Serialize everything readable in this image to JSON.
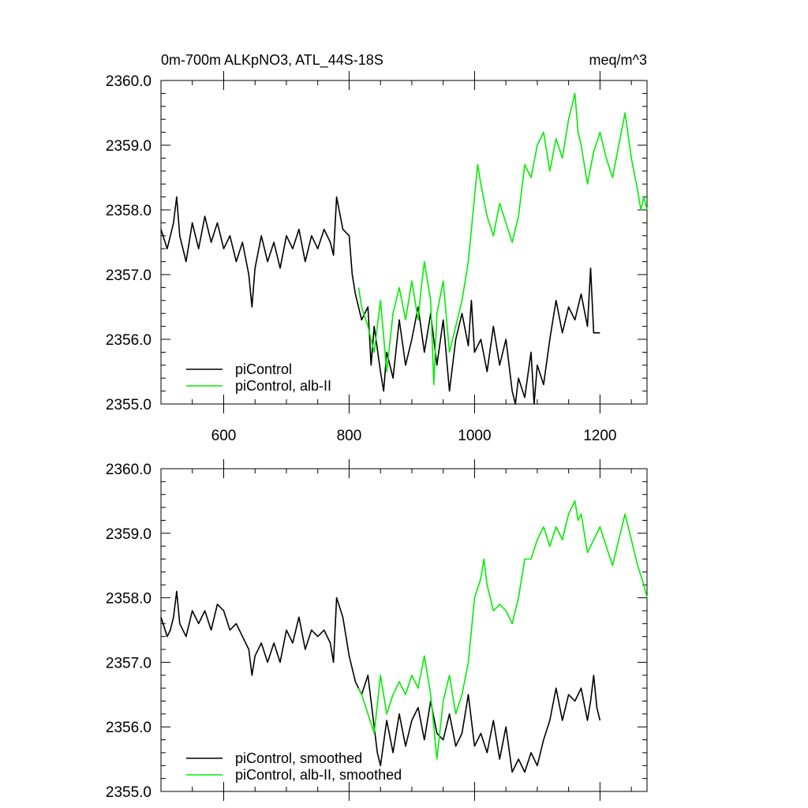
{
  "figure": {
    "title": "0m-700m ALKpNO3, ATL_44S-18S",
    "units": "meq/m^3"
  },
  "chart_data": [
    {
      "type": "line",
      "title": "0m-700m ALKpNO3, ATL_44S-18S",
      "units_label": "meq/m^3",
      "xlim": [
        500,
        1275
      ],
      "ylim": [
        2355.0,
        2360.0
      ],
      "xticks": [
        600,
        800,
        1000,
        1200
      ],
      "xtick_labels": [
        "600",
        "800",
        "1000",
        "1200"
      ],
      "yticks": [
        2355.0,
        2356.0,
        2357.0,
        2358.0,
        2359.0,
        2360.0
      ],
      "ytick_labels": [
        "2355.0",
        "2356.0",
        "2357.0",
        "2358.0",
        "2359.0",
        "2360.0"
      ],
      "grid": false,
      "legend_position": "bottom-left",
      "series": [
        {
          "name": "piControl",
          "color": "#000000",
          "x": [
            500,
            510,
            520,
            525,
            530,
            540,
            550,
            560,
            570,
            580,
            590,
            600,
            610,
            620,
            630,
            640,
            645,
            650,
            660,
            670,
            680,
            690,
            700,
            710,
            720,
            730,
            740,
            750,
            760,
            770,
            775,
            780,
            790,
            800,
            805,
            810,
            820,
            830,
            835,
            840,
            850,
            855,
            860,
            870,
            880,
            890,
            900,
            910,
            920,
            930,
            940,
            950,
            960,
            970,
            980,
            990,
            995,
            1000,
            1010,
            1020,
            1030,
            1040,
            1050,
            1060,
            1065,
            1070,
            1080,
            1090,
            1095,
            1100,
            1110,
            1120,
            1130,
            1140,
            1150,
            1160,
            1170,
            1180,
            1185,
            1190,
            1200
          ],
          "values": [
            2357.7,
            2357.4,
            2357.8,
            2358.2,
            2357.6,
            2357.2,
            2357.8,
            2357.4,
            2357.9,
            2357.5,
            2357.8,
            2357.4,
            2357.6,
            2357.2,
            2357.5,
            2357.0,
            2356.5,
            2357.1,
            2357.6,
            2357.2,
            2357.5,
            2357.1,
            2357.6,
            2357.4,
            2357.7,
            2357.2,
            2357.6,
            2357.4,
            2357.7,
            2357.5,
            2357.3,
            2358.2,
            2357.7,
            2357.6,
            2357.0,
            2356.7,
            2356.3,
            2356.5,
            2355.6,
            2356.2,
            2355.5,
            2355.2,
            2355.8,
            2355.4,
            2356.3,
            2355.6,
            2356.0,
            2356.5,
            2355.8,
            2356.4,
            2355.6,
            2356.3,
            2355.2,
            2356.0,
            2356.4,
            2355.9,
            2356.6,
            2355.8,
            2356.0,
            2355.5,
            2356.2,
            2355.6,
            2356.0,
            2355.2,
            2355.0,
            2355.4,
            2355.1,
            2355.8,
            2355.0,
            2355.6,
            2355.3,
            2356.0,
            2356.6,
            2356.1,
            2356.5,
            2356.3,
            2356.7,
            2356.2,
            2357.1,
            2356.1,
            2356.1
          ]
        },
        {
          "name": "piControl, alb-II",
          "color": "#00ee00",
          "x": [
            815,
            820,
            830,
            840,
            850,
            860,
            870,
            880,
            890,
            900,
            910,
            915,
            920,
            930,
            935,
            940,
            950,
            960,
            970,
            980,
            990,
            1000,
            1005,
            1010,
            1020,
            1030,
            1040,
            1050,
            1060,
            1070,
            1080,
            1090,
            1100,
            1110,
            1120,
            1130,
            1140,
            1150,
            1160,
            1165,
            1170,
            1180,
            1190,
            1200,
            1210,
            1220,
            1230,
            1240,
            1250,
            1260,
            1265,
            1270,
            1275
          ],
          "values": [
            2356.8,
            2356.5,
            2356.2,
            2355.8,
            2356.6,
            2355.5,
            2356.4,
            2356.8,
            2356.3,
            2356.9,
            2356.3,
            2356.8,
            2357.2,
            2356.6,
            2355.3,
            2356.4,
            2356.9,
            2355.8,
            2356.2,
            2356.6,
            2357.2,
            2358.2,
            2358.7,
            2358.4,
            2357.9,
            2357.6,
            2358.1,
            2357.8,
            2357.5,
            2357.9,
            2358.7,
            2358.5,
            2359.0,
            2359.2,
            2358.6,
            2359.1,
            2358.8,
            2359.4,
            2359.8,
            2359.2,
            2359.0,
            2358.4,
            2358.9,
            2359.2,
            2358.8,
            2358.5,
            2359.0,
            2359.5,
            2358.8,
            2358.3,
            2358.0,
            2358.2,
            2358.0
          ]
        }
      ]
    },
    {
      "type": "line",
      "xlim": [
        500,
        1275
      ],
      "ylim": [
        2355.0,
        2360.0
      ],
      "xticks": [
        600,
        800,
        1000,
        1200
      ],
      "yticks": [
        2355.0,
        2356.0,
        2357.0,
        2358.0,
        2359.0,
        2360.0
      ],
      "ytick_labels": [
        "2355.0",
        "2356.0",
        "2357.0",
        "2358.0",
        "2359.0",
        "2360.0"
      ],
      "grid": false,
      "legend_position": "bottom-left",
      "series": [
        {
          "name": "piControl, smoothed",
          "color": "#000000",
          "x": [
            500,
            510,
            515,
            520,
            525,
            530,
            540,
            550,
            560,
            570,
            580,
            590,
            600,
            610,
            620,
            630,
            640,
            645,
            650,
            660,
            670,
            680,
            690,
            700,
            710,
            720,
            730,
            740,
            750,
            760,
            770,
            775,
            780,
            790,
            800,
            810,
            820,
            830,
            840,
            845,
            850,
            860,
            870,
            880,
            890,
            900,
            910,
            920,
            930,
            940,
            950,
            960,
            970,
            980,
            990,
            1000,
            1010,
            1020,
            1030,
            1040,
            1050,
            1060,
            1070,
            1080,
            1090,
            1100,
            1110,
            1120,
            1130,
            1140,
            1150,
            1160,
            1170,
            1180,
            1185,
            1190,
            1195,
            1200
          ],
          "values": [
            2357.7,
            2357.4,
            2357.5,
            2357.7,
            2358.1,
            2357.6,
            2357.4,
            2357.8,
            2357.6,
            2357.8,
            2357.5,
            2357.9,
            2357.8,
            2357.5,
            2357.6,
            2357.4,
            2357.2,
            2356.8,
            2357.1,
            2357.3,
            2357.0,
            2357.3,
            2357.0,
            2357.5,
            2357.3,
            2357.7,
            2357.2,
            2357.5,
            2357.4,
            2357.5,
            2357.3,
            2357.0,
            2358.0,
            2357.7,
            2357.1,
            2356.7,
            2356.5,
            2356.8,
            2356.0,
            2355.6,
            2355.4,
            2356.1,
            2355.6,
            2356.2,
            2355.7,
            2356.1,
            2356.3,
            2355.8,
            2356.4,
            2355.9,
            2355.8,
            2356.2,
            2355.7,
            2355.9,
            2356.5,
            2355.7,
            2355.9,
            2355.6,
            2356.1,
            2355.5,
            2356.0,
            2355.3,
            2355.5,
            2355.3,
            2355.6,
            2355.4,
            2355.8,
            2356.1,
            2356.6,
            2356.1,
            2356.5,
            2356.4,
            2356.6,
            2356.1,
            2356.4,
            2356.8,
            2356.3,
            2356.1
          ]
        },
        {
          "name": "piControl, alb-II, smoothed",
          "color": "#00ee00",
          "x": [
            815,
            820,
            830,
            840,
            850,
            860,
            870,
            880,
            890,
            900,
            910,
            920,
            930,
            935,
            940,
            950,
            960,
            970,
            980,
            990,
            1000,
            1010,
            1015,
            1020,
            1030,
            1040,
            1050,
            1060,
            1070,
            1080,
            1090,
            1100,
            1110,
            1120,
            1130,
            1140,
            1150,
            1160,
            1165,
            1170,
            1180,
            1190,
            1200,
            1210,
            1220,
            1230,
            1240,
            1250,
            1260,
            1270,
            1275
          ],
          "values": [
            2356.6,
            2356.5,
            2356.2,
            2355.9,
            2356.8,
            2356.2,
            2356.5,
            2356.7,
            2356.5,
            2356.8,
            2356.6,
            2357.1,
            2356.5,
            2356.0,
            2355.5,
            2356.4,
            2356.8,
            2356.2,
            2356.5,
            2357.0,
            2358.0,
            2358.3,
            2358.6,
            2358.2,
            2357.8,
            2357.9,
            2357.8,
            2357.6,
            2358.0,
            2358.6,
            2358.6,
            2358.9,
            2359.1,
            2358.8,
            2359.1,
            2358.9,
            2359.3,
            2359.5,
            2359.2,
            2359.3,
            2358.7,
            2358.9,
            2359.1,
            2358.8,
            2358.5,
            2358.9,
            2359.3,
            2358.9,
            2358.5,
            2358.2,
            2358.0
          ]
        }
      ]
    }
  ]
}
